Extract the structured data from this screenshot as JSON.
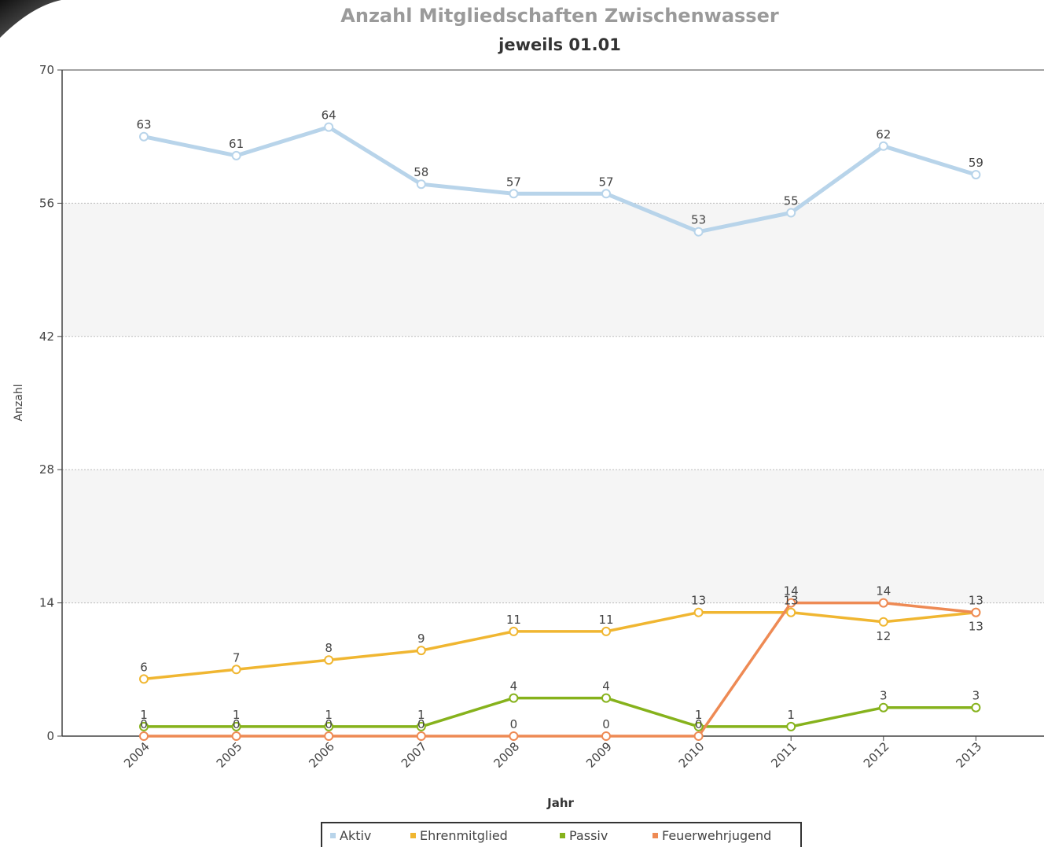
{
  "chart_data": {
    "type": "line",
    "title": "Anzahl Mitgliedschaften Zwischenwasser",
    "subtitle": "jeweils 01.01",
    "xlabel": "Jahr",
    "ylabel": "Anzahl",
    "categories": [
      "2004",
      "2005",
      "2006",
      "2007",
      "2008",
      "2009",
      "2010",
      "2011",
      "2012",
      "2013"
    ],
    "ylim": [
      0,
      70
    ],
    "yticks": [
      0,
      14,
      28,
      42,
      56,
      70
    ],
    "grid": true,
    "legend_position": "bottom",
    "series": [
      {
        "name": "Aktiv",
        "color": "#b8d4ea",
        "values": [
          63,
          61,
          64,
          58,
          57,
          57,
          53,
          55,
          62,
          59
        ]
      },
      {
        "name": "Ehrenmitglied",
        "color": "#f0b631",
        "values": [
          6,
          7,
          8,
          9,
          11,
          11,
          13,
          13,
          12,
          13
        ]
      },
      {
        "name": "Passiv",
        "color": "#86b21c",
        "values": [
          1,
          1,
          1,
          1,
          4,
          4,
          1,
          1,
          3,
          3
        ]
      },
      {
        "name": "Feuerwehrjugend",
        "color": "#ee8a54",
        "values": [
          0,
          0,
          0,
          0,
          0,
          0,
          0,
          14,
          14,
          13
        ]
      }
    ]
  }
}
